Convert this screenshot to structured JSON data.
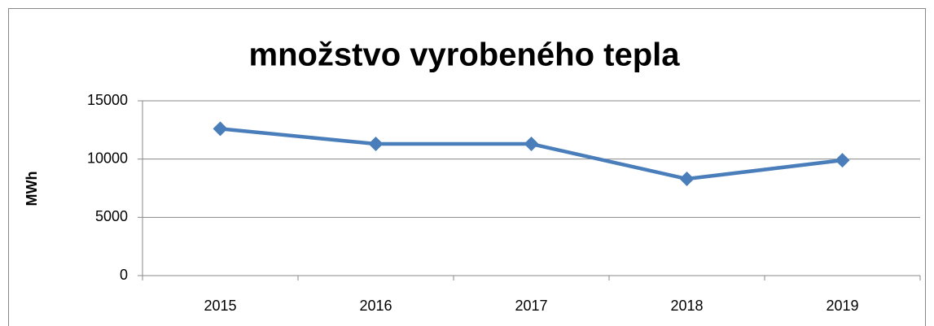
{
  "chart_data": {
    "type": "line",
    "title": "množstvo vyrobeného tepla",
    "y_label": "MWh",
    "categories": [
      "2015",
      "2016",
      "2017",
      "2018",
      "2019"
    ],
    "series": [
      {
        "name": "množstvo vyrobeného tepla",
        "color": "#4a7ebb",
        "values": [
          12600,
          11300,
          11300,
          8300,
          9900
        ]
      }
    ],
    "ylim": [
      0,
      15000
    ],
    "yticks": [
      0,
      5000,
      10000,
      15000
    ],
    "grid": true
  }
}
